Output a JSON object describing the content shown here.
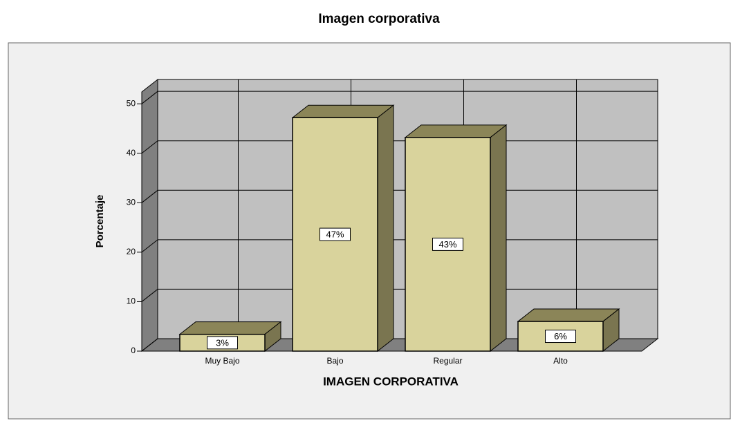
{
  "chart_data": {
    "type": "bar3d",
    "title": "Imagen corporativa",
    "xlabel": "IMAGEN CORPORATIVA",
    "ylabel": "Porcentaje",
    "categories": [
      "Muy Bajo",
      "Bajo",
      "Regular",
      "Alto"
    ],
    "values": [
      3.4,
      47.2,
      43.2,
      6
    ],
    "value_labels": [
      "3%",
      "47%",
      "43%",
      "6%"
    ],
    "color": "#d9d39c",
    "ylim": [
      0,
      52.4
    ],
    "yticks": [
      0,
      10,
      20,
      30,
      40,
      50
    ],
    "grid": true
  }
}
